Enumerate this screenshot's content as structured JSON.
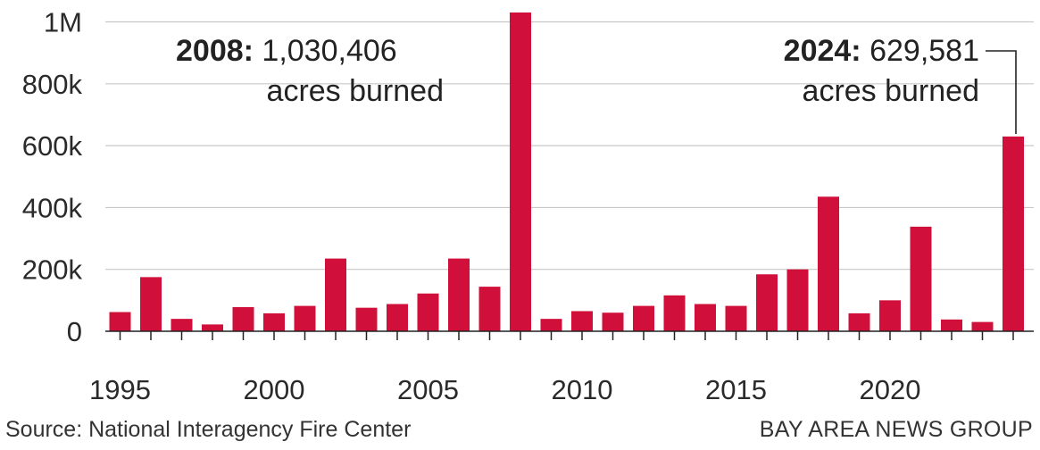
{
  "chart_data": {
    "type": "bar",
    "title": "",
    "xlabel": "",
    "ylabel": "",
    "ylim": [
      0,
      1030406
    ],
    "yticks": [
      0,
      200000,
      400000,
      600000,
      800000,
      1000000
    ],
    "ytick_labels": [
      "0",
      "200k",
      "400k",
      "600k",
      "800k",
      "1M"
    ],
    "xtick_labels": [
      "1995",
      "2000",
      "2005",
      "2010",
      "2015",
      "2020"
    ],
    "xtick_years": [
      1995,
      2000,
      2005,
      2010,
      2015,
      2020
    ],
    "bar_color": "#d0103a",
    "gridlines": true,
    "categories": [
      1995,
      1996,
      1997,
      1998,
      1999,
      2000,
      2001,
      2002,
      2003,
      2004,
      2005,
      2006,
      2007,
      2008,
      2009,
      2010,
      2011,
      2012,
      2013,
      2014,
      2015,
      2016,
      2017,
      2018,
      2019,
      2020,
      2021,
      2022,
      2023,
      2024
    ],
    "values": [
      62000,
      175000,
      40000,
      22000,
      78000,
      58000,
      82000,
      235000,
      76000,
      88000,
      122000,
      235000,
      144000,
      1030406,
      40000,
      65000,
      60000,
      82000,
      116000,
      88000,
      82000,
      184000,
      200000,
      435000,
      58000,
      100000,
      338000,
      38000,
      30000,
      629581
    ]
  },
  "annotations": [
    {
      "year": "2008:",
      "value": "1,030,406",
      "line2": "acres burned"
    },
    {
      "year": "2024:",
      "value": "629,581",
      "line2": "acres burned"
    }
  ],
  "footer": {
    "source": "Source: National Interagency Fire Center",
    "credit": "BAY AREA NEWS GROUP"
  }
}
